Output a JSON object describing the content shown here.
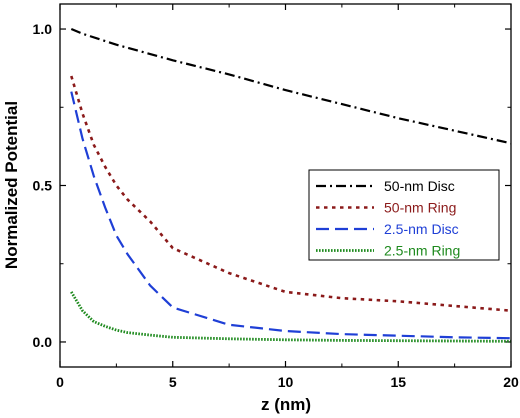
{
  "chart_data": {
    "type": "line",
    "title": "",
    "xlabel": "z (nm)",
    "ylabel": "Normalized Potential",
    "xlim": [
      0,
      20
    ],
    "ylim": [
      -0.08,
      1.08
    ],
    "x_ticks": [
      0,
      5,
      10,
      15,
      20
    ],
    "x_tick_labels": [
      "0",
      "5",
      "10",
      "15",
      "20"
    ],
    "y_ticks": [
      0.0,
      0.5,
      1.0
    ],
    "y_tick_labels": [
      "0.0",
      "0.5",
      "1.0"
    ],
    "grid": false,
    "legend_position": "right-center",
    "series": [
      {
        "name": "50-nm Disc",
        "color": "#000000",
        "dash": "dash-dot",
        "x": [
          0.5,
          1,
          2.5,
          5,
          7.5,
          10,
          12.5,
          15,
          17.5,
          20
        ],
        "y": [
          1.0,
          0.985,
          0.95,
          0.9,
          0.855,
          0.805,
          0.76,
          0.715,
          0.675,
          0.635
        ]
      },
      {
        "name": "50-nm Ring",
        "color": "#8b1a1a",
        "dash": "dot",
        "x": [
          0.5,
          1,
          1.5,
          2,
          2.5,
          3,
          4,
          5,
          7.5,
          10,
          12.5,
          15,
          17.5,
          20
        ],
        "y": [
          0.85,
          0.73,
          0.63,
          0.56,
          0.5,
          0.455,
          0.385,
          0.3,
          0.22,
          0.16,
          0.14,
          0.13,
          0.115,
          0.1
        ]
      },
      {
        "name": "2.5-nm Disc",
        "color": "#1f3fd6",
        "dash": "dash",
        "x": [
          0.5,
          1,
          1.5,
          2,
          2.5,
          3,
          4,
          5,
          7.5,
          10,
          12.5,
          15,
          17.5,
          20
        ],
        "y": [
          0.8,
          0.65,
          0.53,
          0.43,
          0.34,
          0.28,
          0.18,
          0.11,
          0.055,
          0.035,
          0.025,
          0.02,
          0.015,
          0.012
        ]
      },
      {
        "name": "2.5-nm Ring",
        "color": "#1e8a1e",
        "dash": "fine-dot",
        "x": [
          0.5,
          1,
          1.5,
          2,
          2.5,
          3,
          4,
          5,
          7.5,
          10,
          12.5,
          15,
          17.5,
          20
        ],
        "y": [
          0.16,
          0.1,
          0.065,
          0.05,
          0.038,
          0.03,
          0.022,
          0.015,
          0.01,
          0.007,
          0.005,
          0.004,
          0.003,
          0.002
        ]
      }
    ]
  }
}
